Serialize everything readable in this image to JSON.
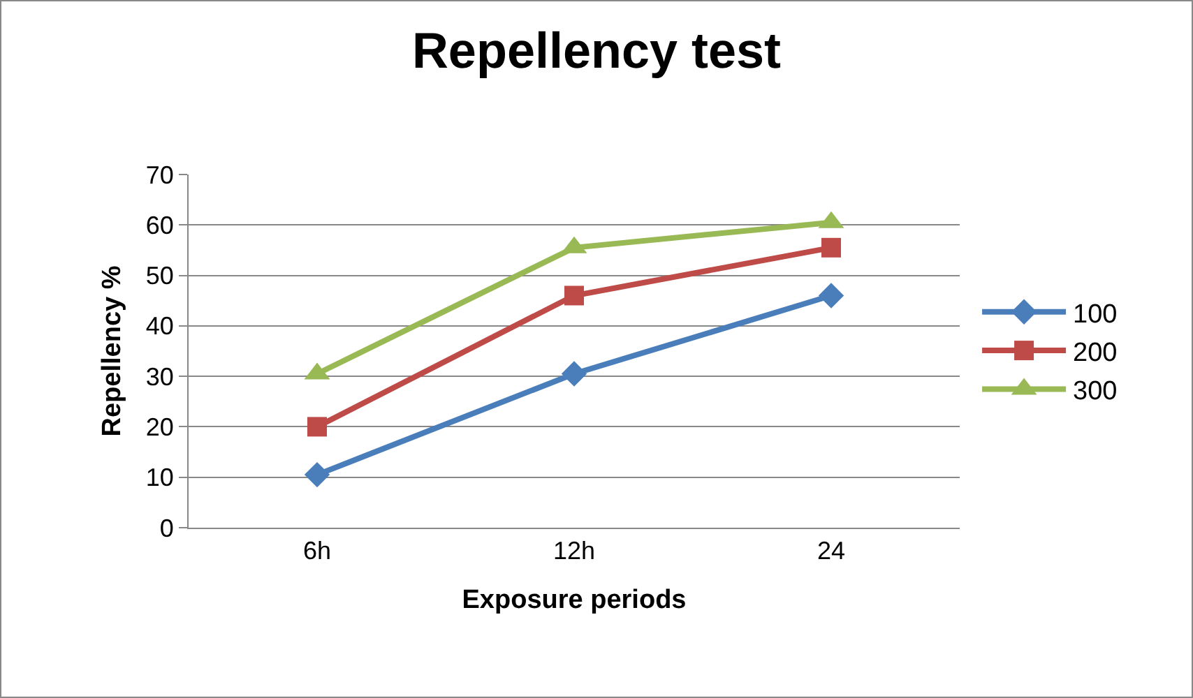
{
  "chart_data": {
    "type": "line",
    "title": "Repellency test",
    "xlabel": "Exposure periods",
    "ylabel": "Repellency %",
    "categories": [
      "6h",
      "12h",
      "24"
    ],
    "series": [
      {
        "name": "100",
        "color": "#4a7ebb",
        "values": [
          10.5,
          30.5,
          46
        ],
        "marker": "diamond"
      },
      {
        "name": "200",
        "color": "#be4b48",
        "values": [
          20,
          46,
          55.5
        ],
        "marker": "square"
      },
      {
        "name": "300",
        "color": "#98b954",
        "values": [
          30.5,
          55.5,
          60.5
        ],
        "marker": "triangle"
      }
    ],
    "ylim": [
      0,
      70
    ],
    "yticks": [
      0,
      10,
      20,
      30,
      40,
      50,
      60,
      70
    ],
    "grid": "y",
    "legend": "right",
    "line_style": "solid"
  }
}
